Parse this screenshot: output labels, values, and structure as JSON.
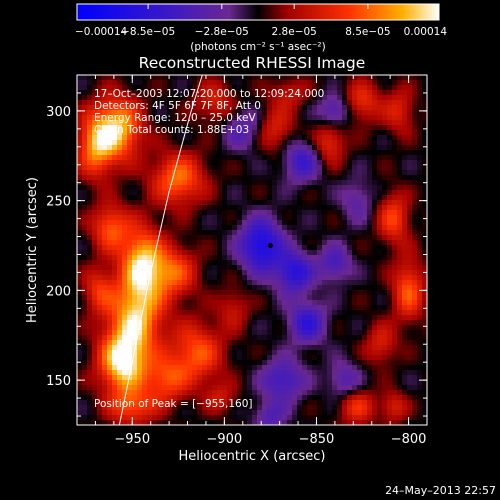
{
  "chart_data": {
    "type": "heatmap",
    "title": "Reconstructed RHESSI Image",
    "xlabel": "Heliocentric X (arcsec)",
    "ylabel": "Heliocentric Y (arcsec)",
    "xlim": [
      -980,
      -790
    ],
    "ylim": [
      125,
      320
    ],
    "x_ticks": [
      -950,
      -900,
      -850,
      -800
    ],
    "x_tick_labels": [
      "−950",
      "−900",
      "−850",
      "−800"
    ],
    "y_ticks": [
      150,
      200,
      250,
      300
    ],
    "y_tick_labels": [
      "150",
      "200",
      "250",
      "300"
    ],
    "colorbar": {
      "range": [
        -0.00014,
        0.00014
      ],
      "tick_values": [
        -0.00014,
        -8.5e-05,
        -2.8e-05,
        2.8e-05,
        8.5e-05,
        0.00014
      ],
      "tick_labels": [
        "−0.00014",
        "−8.5e−05",
        "−2.8e−05",
        "2.8e−05",
        "8.5e−05",
        "0.00014"
      ],
      "units": "(photons cm⁻² s⁻¹ asec⁻²)"
    },
    "annotations": [
      "17–Oct–2003 12:07:20.000 to 12:09:24.000",
      "Detectors: 4F 5F 6F 7F 8F, Att 0",
      "Energy Range: 12.0 – 25.0 keV",
      "Clean     Total counts: 1.88E+03"
    ],
    "peak_label": "Position of Peak = [−955,160]",
    "peak": [
      -955,
      160
    ],
    "marker": [
      -875,
      225
    ],
    "limb_curve": [
      [
        -957,
        125
      ],
      [
        -948,
        170
      ],
      [
        -940,
        210
      ],
      [
        -930,
        255
      ],
      [
        -918,
        300
      ],
      [
        -912,
        320
      ]
    ],
    "hotspots": [
      {
        "x": -955,
        "y": 160,
        "v": 0.00014,
        "sx": 9,
        "sy": 12
      },
      {
        "x": -948,
        "y": 185,
        "v": 0.00011,
        "sx": 10,
        "sy": 14
      },
      {
        "x": -945,
        "y": 215,
        "v": 0.00012,
        "sx": 8,
        "sy": 14
      },
      {
        "x": -958,
        "y": 290,
        "v": 0.00012,
        "sx": 9,
        "sy": 12
      },
      {
        "x": -925,
        "y": 262,
        "v": 9e-05,
        "sx": 10,
        "sy": 10
      },
      {
        "x": -970,
        "y": 280,
        "v": 9e-05,
        "sx": 7,
        "sy": 12
      },
      {
        "x": -962,
        "y": 235,
        "v": 8e-05,
        "sx": 7,
        "sy": 9
      },
      {
        "x": -968,
        "y": 200,
        "v": 6e-05,
        "sx": 6,
        "sy": 9
      },
      {
        "x": -928,
        "y": 210,
        "v": 8e-05,
        "sx": 9,
        "sy": 10
      },
      {
        "x": -915,
        "y": 165,
        "v": 8e-05,
        "sx": 10,
        "sy": 12
      },
      {
        "x": -932,
        "y": 150,
        "v": 7e-05,
        "sx": 8,
        "sy": 9
      },
      {
        "x": -950,
        "y": 135,
        "v": 7e-05,
        "sx": 9,
        "sy": 7
      },
      {
        "x": -905,
        "y": 305,
        "v": 5e-05,
        "sx": 8,
        "sy": 8
      },
      {
        "x": -872,
        "y": 290,
        "v": 5e-05,
        "sx": 7,
        "sy": 9
      },
      {
        "x": -865,
        "y": 310,
        "v": 4e-05,
        "sx": 7,
        "sy": 6
      },
      {
        "x": -843,
        "y": 282,
        "v": 6e-05,
        "sx": 6,
        "sy": 8
      },
      {
        "x": -825,
        "y": 305,
        "v": 6e-05,
        "sx": 7,
        "sy": 8
      },
      {
        "x": -805,
        "y": 300,
        "v": 5e-05,
        "sx": 6,
        "sy": 9
      },
      {
        "x": -808,
        "y": 240,
        "v": 7e-05,
        "sx": 6,
        "sy": 10
      },
      {
        "x": -800,
        "y": 200,
        "v": 8e-05,
        "sx": 6,
        "sy": 12
      },
      {
        "x": -815,
        "y": 170,
        "v": 5e-05,
        "sx": 6,
        "sy": 8
      },
      {
        "x": -828,
        "y": 135,
        "v": 6e-05,
        "sx": 7,
        "sy": 7
      },
      {
        "x": -808,
        "y": 135,
        "v": 5e-05,
        "sx": 5,
        "sy": 6
      },
      {
        "x": -895,
        "y": 190,
        "v": 4e-05,
        "sx": 6,
        "sy": 8
      },
      {
        "x": -902,
        "y": 140,
        "v": 4e-05,
        "sx": 6,
        "sy": 6
      },
      {
        "x": -880,
        "y": 225,
        "v": -0.00011,
        "sx": 8,
        "sy": 10
      },
      {
        "x": -862,
        "y": 210,
        "v": -9e-05,
        "sx": 7,
        "sy": 8
      },
      {
        "x": -855,
        "y": 182,
        "v": -8e-05,
        "sx": 7,
        "sy": 8
      },
      {
        "x": -868,
        "y": 150,
        "v": -7e-05,
        "sx": 8,
        "sy": 8
      },
      {
        "x": -858,
        "y": 272,
        "v": -7e-05,
        "sx": 7,
        "sy": 8
      },
      {
        "x": -840,
        "y": 300,
        "v": -6e-05,
        "sx": 6,
        "sy": 6
      },
      {
        "x": -840,
        "y": 215,
        "v": -6e-05,
        "sx": 6,
        "sy": 7
      },
      {
        "x": -835,
        "y": 150,
        "v": -5e-05,
        "sx": 6,
        "sy": 7
      },
      {
        "x": -890,
        "y": 290,
        "v": -5e-05,
        "sx": 7,
        "sy": 8
      },
      {
        "x": -875,
        "y": 130,
        "v": -5e-05,
        "sx": 6,
        "sy": 6
      },
      {
        "x": -828,
        "y": 250,
        "v": -4e-05,
        "sx": 6,
        "sy": 8
      }
    ]
  },
  "timestamp": "24–May–2013 22:57"
}
